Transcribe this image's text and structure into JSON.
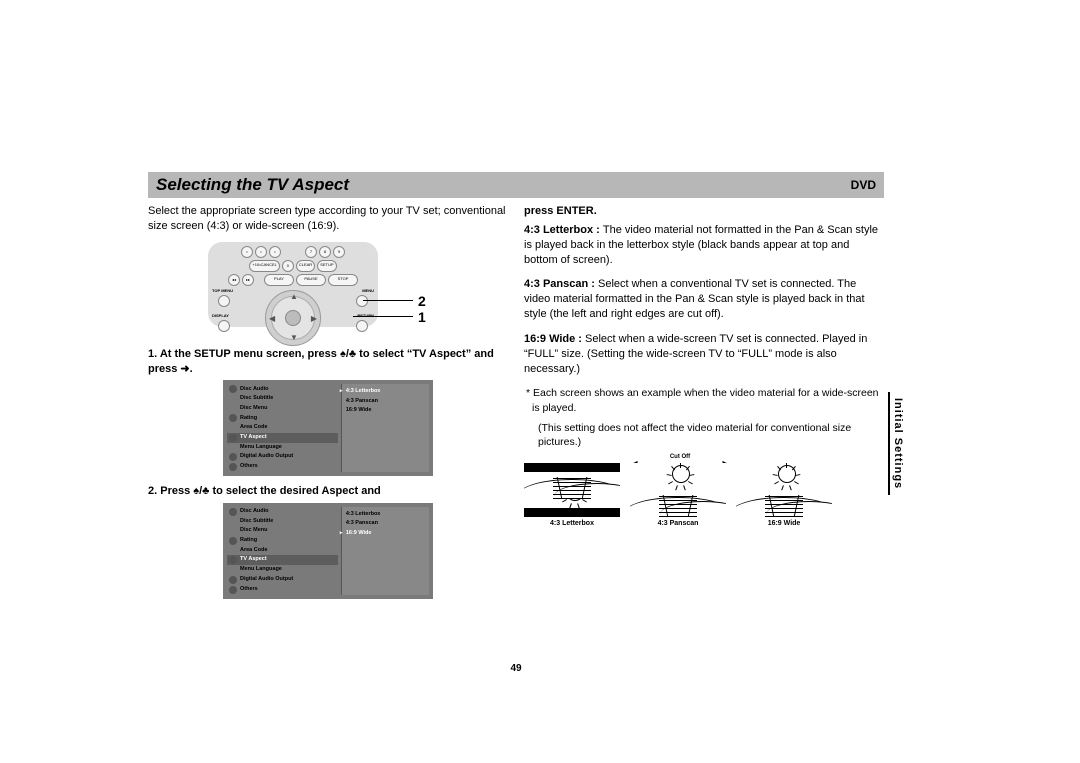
{
  "header": {
    "title": "Selecting the TV Aspect",
    "tag": "DVD"
  },
  "left": {
    "intro": "Select the appropriate screen type according to your TV set; conventional size screen (4:3) or wide-screen (16:9).",
    "remote": {
      "row1": [
        "7",
        "8",
        "9"
      ],
      "row2": [
        "+10•CANCEL",
        "0",
        "CLEAR",
        "SETUP"
      ],
      "row3": [
        "PLAY",
        "PAUSE",
        "STOP"
      ],
      "side_left_top": "TOP MENU",
      "side_left_bot": "DISPLAY",
      "side_right_top": "MENU",
      "side_right_bot": "RETURN",
      "center": "ENTER"
    },
    "callouts": {
      "num1": "1",
      "num2": "2"
    },
    "step1_a": "1. At the SETUP menu screen, press ",
    "step1_b": "/",
    "step1_c": " to select “TV Aspect” and press ",
    "step1_d": ".",
    "menu1": {
      "left": [
        {
          "icon": true,
          "label": "Disc Audio"
        },
        {
          "icon": false,
          "label": "Disc Subtitle"
        },
        {
          "icon": false,
          "label": "Disc Menu"
        },
        {
          "icon": true,
          "label": "Rating"
        },
        {
          "icon": false,
          "label": "Area Code"
        },
        {
          "icon": true,
          "label": "TV Aspect",
          "sel": true
        },
        {
          "icon": false,
          "label": "Menu Language"
        },
        {
          "icon": true,
          "label": "Digital Audio Output"
        },
        {
          "icon": true,
          "label": "Others"
        }
      ],
      "right": [
        {
          "label": "4:3  Letterbox",
          "sel": true
        },
        {
          "label": "4:3  Panscan"
        },
        {
          "label": "16:9 Wide"
        }
      ]
    },
    "step2_a": "2. Press ",
    "step2_b": "/",
    "step2_c": " to select the desired Aspect and",
    "menu2": {
      "left": [
        {
          "icon": true,
          "label": "Disc Audio"
        },
        {
          "icon": false,
          "label": "Disc Subtitle"
        },
        {
          "icon": false,
          "label": "Disc Menu"
        },
        {
          "icon": true,
          "label": "Rating"
        },
        {
          "icon": false,
          "label": "Area Code"
        },
        {
          "icon": true,
          "label": "TV Aspect",
          "sel": true
        },
        {
          "icon": false,
          "label": "Menu Language"
        },
        {
          "icon": true,
          "label": "Digital Audio Output"
        },
        {
          "icon": true,
          "label": "Others"
        }
      ],
      "right": [
        {
          "label": "4:3  Letterbox"
        },
        {
          "label": "4:3  Panscan"
        },
        {
          "label": "16:9 Wide",
          "sel": true
        }
      ]
    }
  },
  "right": {
    "cont": "press ENTER.",
    "p1_lead": "4:3 Letterbox : ",
    "p1": "The video material not formatted in the Pan & Scan style is played back in the letterbox style (black bands appear at top and bottom of screen).",
    "p2_lead": "4:3 Panscan : ",
    "p2": "Select when a conventional TV set is connected. The video material formatted in the Pan & Scan style is played back in that style (the left and right edges are cut off).",
    "p3_lead": "16:9 Wide : ",
    "p3": "Select when a wide-screen TV set is connected. Played in “FULL” size. (Setting the wide-screen TV to “FULL” mode is also necessary.)",
    "note1": "* Each screen shows an example when the video material for a wide-screen is played.",
    "note2": "(This setting does not affect the video material for conventional size pictures.)",
    "cutoff": "Cut Off",
    "examples": [
      {
        "caption": "4:3 Letterbox",
        "mode": "lb"
      },
      {
        "caption": "4:3 Panscan",
        "mode": "ps"
      },
      {
        "caption": "16:9 Wide",
        "mode": "wd"
      }
    ]
  },
  "side_tab": "Initial Settings",
  "page_number": "49",
  "colors": {
    "header_bg": "#b7b7b7",
    "menu_bg": "#7a7a7a",
    "menu_right_bg": "#888888",
    "remote_bg": "#dedede"
  }
}
